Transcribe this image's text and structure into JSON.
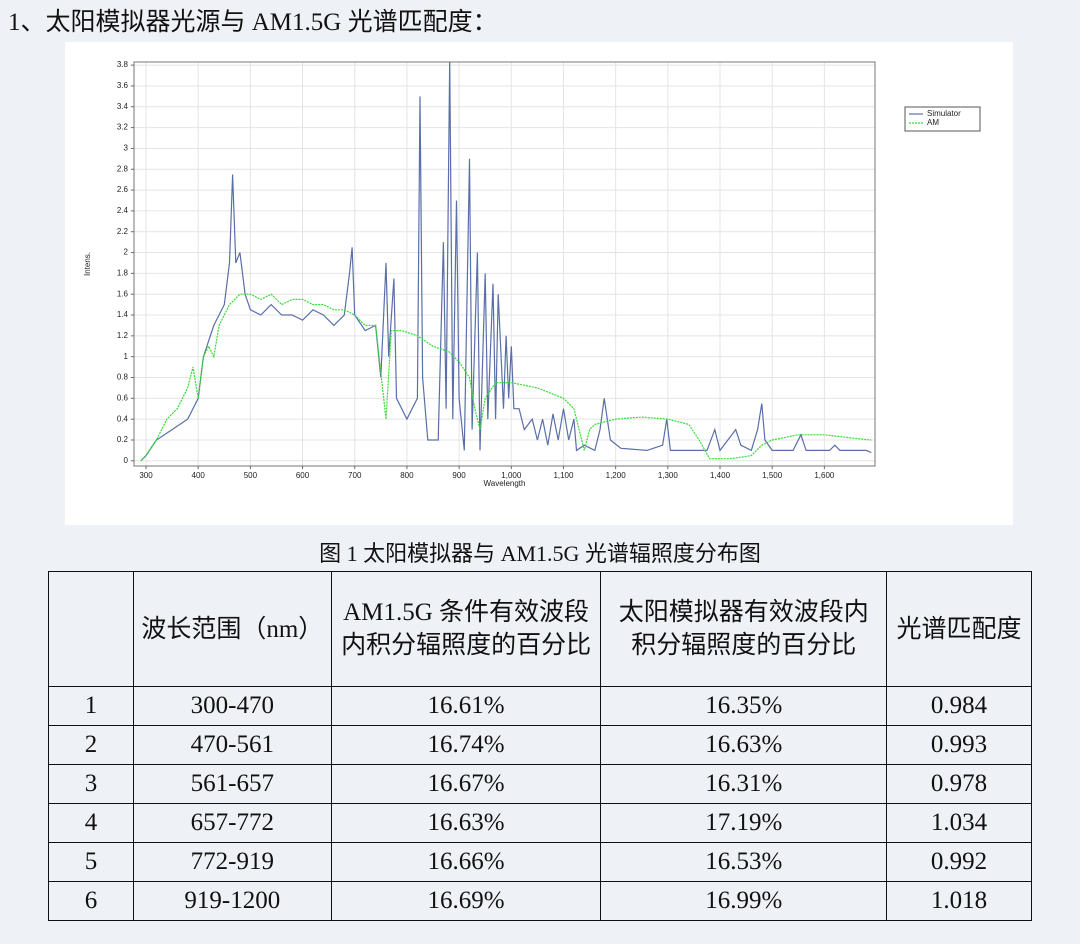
{
  "heading": "1、太阳模拟器光源与 AM1.5G 光谱匹配度：",
  "chart_data": {
    "type": "line",
    "x_label": "Wavelength",
    "y_label": "Intens.",
    "xlim": [
      277,
      1697
    ],
    "ylim": [
      -0.05,
      3.83
    ],
    "xticks": [
      300,
      400,
      500,
      600,
      700,
      800,
      900,
      {
        "value": 1000,
        "label": "1,000"
      },
      {
        "value": 1100,
        "label": "1,100"
      },
      {
        "value": 1200,
        "label": "1,200"
      },
      {
        "value": 1300,
        "label": "1,300"
      },
      {
        "value": 1400,
        "label": "1,400"
      },
      {
        "value": 1500,
        "label": "1,500"
      },
      {
        "value": 1600,
        "label": "1,600"
      }
    ],
    "yticks": [
      0,
      0.2,
      0.4,
      0.6,
      0.8,
      1,
      1.2,
      1.4,
      1.6,
      1.8,
      2,
      2.2,
      2.4,
      2.6,
      2.8,
      3,
      3.2,
      3.4,
      3.6,
      3.8
    ],
    "grid": true,
    "legend": "right",
    "series": [
      {
        "name": "Simulator",
        "color": "#5a6fa8",
        "x": [
          290,
          300,
          320,
          350,
          380,
          400,
          410,
          430,
          450,
          460,
          466,
          472,
          480,
          490,
          500,
          520,
          540,
          560,
          580,
          600,
          620,
          640,
          660,
          680,
          690,
          695,
          700,
          720,
          740,
          750,
          760,
          765,
          775,
          780,
          790,
          800,
          810,
          820,
          825,
          830,
          840,
          860,
          870,
          875,
          882,
          888,
          895,
          900,
          910,
          920,
          925,
          935,
          940,
          950,
          955,
          965,
          970,
          975,
          985,
          990,
          995,
          1000,
          1005,
          1015,
          1025,
          1040,
          1050,
          1060,
          1070,
          1080,
          1090,
          1100,
          1110,
          1120,
          1125,
          1140,
          1160,
          1170,
          1178,
          1190,
          1210,
          1260,
          1290,
          1298,
          1305,
          1350,
          1375,
          1390,
          1400,
          1430,
          1440,
          1460,
          1472,
          1480,
          1486,
          1500,
          1540,
          1555,
          1565,
          1610,
          1620,
          1630,
          1680,
          1690
        ],
        "values": [
          0,
          0.05,
          0.2,
          0.3,
          0.4,
          0.6,
          1.0,
          1.3,
          1.5,
          1.9,
          2.75,
          1.9,
          2.0,
          1.6,
          1.45,
          1.4,
          1.5,
          1.4,
          1.4,
          1.35,
          1.45,
          1.4,
          1.3,
          1.4,
          1.8,
          2.05,
          1.4,
          1.25,
          1.3,
          0.8,
          1.9,
          1.0,
          1.75,
          0.6,
          0.5,
          0.4,
          0.5,
          0.6,
          3.5,
          0.8,
          0.2,
          0.2,
          2.1,
          0.5,
          3.85,
          0.4,
          2.5,
          0.6,
          0.1,
          2.9,
          0.3,
          2.0,
          0.1,
          1.8,
          0.4,
          1.7,
          0.4,
          1.6,
          0.5,
          1.2,
          0.6,
          1.1,
          0.5,
          0.5,
          0.3,
          0.4,
          0.2,
          0.4,
          0.15,
          0.45,
          0.2,
          0.5,
          0.2,
          0.4,
          0.1,
          0.15,
          0.1,
          0.3,
          0.6,
          0.2,
          0.12,
          0.1,
          0.15,
          0.4,
          0.1,
          0.1,
          0.1,
          0.3,
          0.1,
          0.3,
          0.15,
          0.1,
          0.3,
          0.55,
          0.2,
          0.1,
          0.1,
          0.25,
          0.1,
          0.1,
          0.15,
          0.1,
          0.1,
          0.08
        ]
      },
      {
        "name": "AM",
        "color": "#33dd33",
        "x": [
          290,
          300,
          320,
          340,
          360,
          380,
          390,
          400,
          410,
          420,
          430,
          440,
          450,
          460,
          470,
          480,
          500,
          520,
          540,
          560,
          580,
          600,
          620,
          640,
          660,
          680,
          700,
          720,
          740,
          760,
          770,
          790,
          820,
          850,
          880,
          900,
          920,
          930,
          940,
          950,
          970,
          1000,
          1050,
          1100,
          1120,
          1130,
          1140,
          1150,
          1160,
          1200,
          1250,
          1300,
          1340,
          1360,
          1380,
          1420,
          1460,
          1480,
          1500,
          1550,
          1600,
          1650,
          1690
        ],
        "values": [
          0,
          0.05,
          0.2,
          0.4,
          0.5,
          0.7,
          0.9,
          0.6,
          1.0,
          1.1,
          1.0,
          1.3,
          1.4,
          1.5,
          1.55,
          1.6,
          1.6,
          1.55,
          1.6,
          1.5,
          1.55,
          1.55,
          1.5,
          1.5,
          1.45,
          1.45,
          1.4,
          1.3,
          1.3,
          0.4,
          1.25,
          1.25,
          1.2,
          1.1,
          1.05,
          0.95,
          0.8,
          0.5,
          0.3,
          0.6,
          0.75,
          0.75,
          0.7,
          0.6,
          0.5,
          0.3,
          0.1,
          0.3,
          0.35,
          0.4,
          0.42,
          0.4,
          0.35,
          0.2,
          0.02,
          0.02,
          0.05,
          0.15,
          0.2,
          0.25,
          0.25,
          0.22,
          0.2
        ]
      }
    ]
  },
  "caption": "图 1 太阳模拟器与 AM1.5G 光谱辐照度分布图",
  "table": {
    "header": [
      "波长范围（nm）",
      "AM1.5G 条件有效波段内积分辐照度的百分比",
      "太阳模拟器有效波段内积分辐照度的百分比",
      "光谱匹配度"
    ],
    "rows": [
      [
        "1",
        "300-470",
        "16.61%",
        "16.35%",
        "0.984"
      ],
      [
        "2",
        "470-561",
        "16.74%",
        "16.63%",
        "0.993"
      ],
      [
        "3",
        "561-657",
        "16.67%",
        "16.31%",
        "0.978"
      ],
      [
        "4",
        "657-772",
        "16.63%",
        "17.19%",
        "1.034"
      ],
      [
        "5",
        "772-919",
        "16.66%",
        "16.53%",
        "0.992"
      ],
      [
        "6",
        "919-1200",
        "16.69%",
        "16.99%",
        "1.018"
      ]
    ]
  }
}
